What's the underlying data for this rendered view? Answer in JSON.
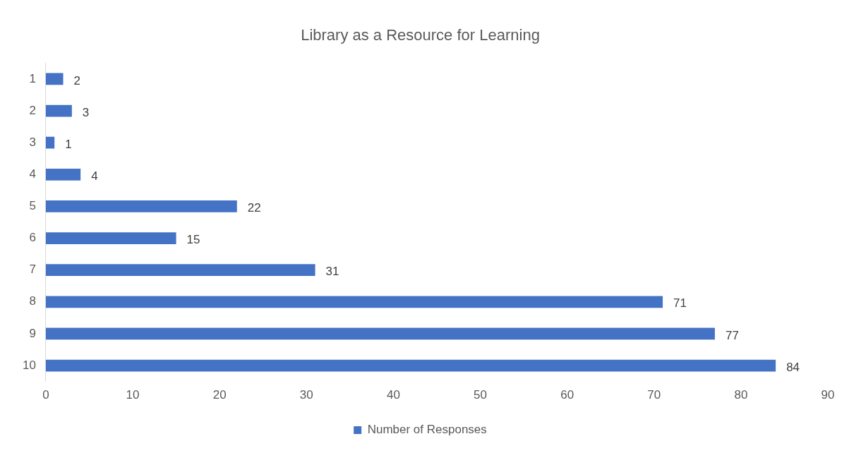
{
  "chart_data": {
    "type": "bar",
    "title": "Library as a Resource for Learning",
    "orientation": "horizontal",
    "categories": [
      "1",
      "2",
      "3",
      "4",
      "5",
      "6",
      "7",
      "8",
      "9",
      "10"
    ],
    "series": [
      {
        "name": "Number of Responses",
        "color": "#4472c4",
        "values": [
          2,
          3,
          1,
          4,
          22,
          15,
          31,
          71,
          77,
          84
        ]
      }
    ],
    "xlim": [
      0,
      90
    ],
    "xticks": [
      0,
      10,
      20,
      30,
      40,
      50,
      60,
      70,
      80,
      90
    ],
    "grid": false,
    "legend": "bottom",
    "data_labels": true
  }
}
